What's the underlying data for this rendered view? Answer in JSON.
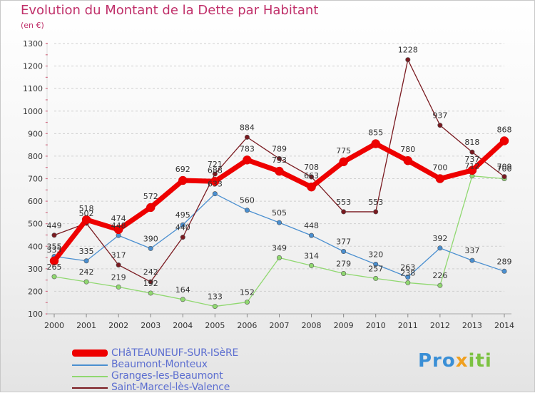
{
  "title": "Evolution du Montant de la Dette par Habitant",
  "unit_label": "(en €)",
  "brand": {
    "part1": "Pro",
    "part2": "x",
    "part3": "iti"
  },
  "chart_data": {
    "type": "line",
    "x": [
      "2000",
      "2001",
      "2002",
      "2003",
      "2004",
      "2005",
      "2006",
      "2007",
      "2008",
      "2009",
      "2010",
      "2011",
      "2012",
      "2013",
      "2014"
    ],
    "ylim": [
      100,
      1300
    ],
    "yticks": [
      100,
      200,
      300,
      400,
      500,
      600,
      700,
      800,
      900,
      1000,
      1100,
      1200,
      1300
    ],
    "grid": "horizontal dashed",
    "legend_position": "bottom-left",
    "series": [
      {
        "name": "CHâTEAUNEUF-SUR-ISèRE",
        "color": "#ee0000",
        "values": [
          335,
          518,
          474,
          572,
          692,
          688,
          783,
          733,
          663,
          775,
          855,
          780,
          700,
          737,
          868
        ],
        "labels": [
          "335",
          "518",
          "474",
          "572",
          "692",
          "688",
          "783",
          "733",
          "663",
          "775",
          "855",
          "780",
          "700",
          "737",
          "868"
        ]
      },
      {
        "name": "Beaumont-Monteux",
        "color": "#4a8fd0",
        "values": [
          355,
          335,
          448,
          390,
          495,
          633,
          560,
          505,
          448,
          377,
          320,
          263,
          392,
          337,
          289
        ],
        "labels": [
          "355",
          "335",
          "448",
          "390",
          "495",
          "633",
          "560",
          "505",
          "448",
          "377",
          "320",
          "263",
          "392",
          "337",
          "289"
        ]
      },
      {
        "name": "Granges-les-Beaumont",
        "color": "#90d870",
        "values": [
          265,
          242,
          219,
          192,
          164,
          133,
          152,
          349,
          314,
          279,
          257,
          238,
          226,
          712,
          700
        ],
        "labels": [
          "265",
          "242",
          "219",
          "192",
          "164",
          "133",
          "152",
          "349",
          "314",
          "279",
          "257",
          "238",
          "226",
          "712",
          "700"
        ]
      },
      {
        "name": "Saint-Marcel-lès-Valence",
        "color": "#7a1a20",
        "values": [
          449,
          502,
          317,
          242,
          440,
          721,
          884,
          789,
          708,
          553,
          553,
          1228,
          937,
          818,
          709
        ],
        "labels": [
          "449",
          "502",
          "317",
          "242",
          "440",
          "721",
          "884",
          "789",
          "708",
          "553",
          "553",
          "1228",
          "937",
          "818",
          "709"
        ]
      }
    ]
  }
}
